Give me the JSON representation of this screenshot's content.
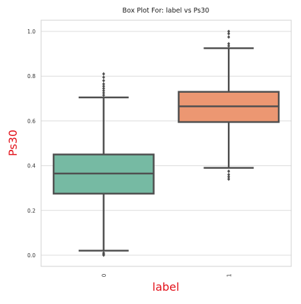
{
  "chart_data": {
    "type": "box",
    "title": "Box Plot For: label vs Ps30",
    "xlabel": "label",
    "ylabel": "Ps30",
    "label_color": "#e3121b",
    "categories": [
      "0",
      "1"
    ],
    "ylim": [
      -0.05,
      1.05
    ],
    "yticks": [
      0.0,
      0.2,
      0.4,
      0.6,
      0.8,
      1.0
    ],
    "ytick_labels": [
      "0.0",
      "0.2",
      "0.4",
      "0.6",
      "0.8",
      "1.0"
    ],
    "grid": true,
    "boxes": [
      {
        "category": "0",
        "whisker_low": 0.02,
        "q1": 0.275,
        "median": 0.365,
        "q3": 0.45,
        "whisker_high": 0.705,
        "outliers": [
          0.0,
          0.005,
          0.01,
          0.715,
          0.725,
          0.735,
          0.745,
          0.755,
          0.765,
          0.78,
          0.795,
          0.81
        ],
        "color": "#76baa3"
      },
      {
        "category": "1",
        "whisker_low": 0.39,
        "q1": 0.595,
        "median": 0.665,
        "q3": 0.73,
        "whisker_high": 0.925,
        "outliers": [
          0.34,
          0.35,
          0.36,
          0.375,
          0.935,
          0.945,
          0.975,
          0.99,
          1.0
        ],
        "color": "#ec9772"
      }
    ],
    "colors": {
      "box_edge": "#4f4f4f",
      "grid": "#dcdcdc",
      "axes_edge": "#d0d0d0",
      "tick_text": "#333333",
      "title_text": "#1a1a1a"
    }
  }
}
